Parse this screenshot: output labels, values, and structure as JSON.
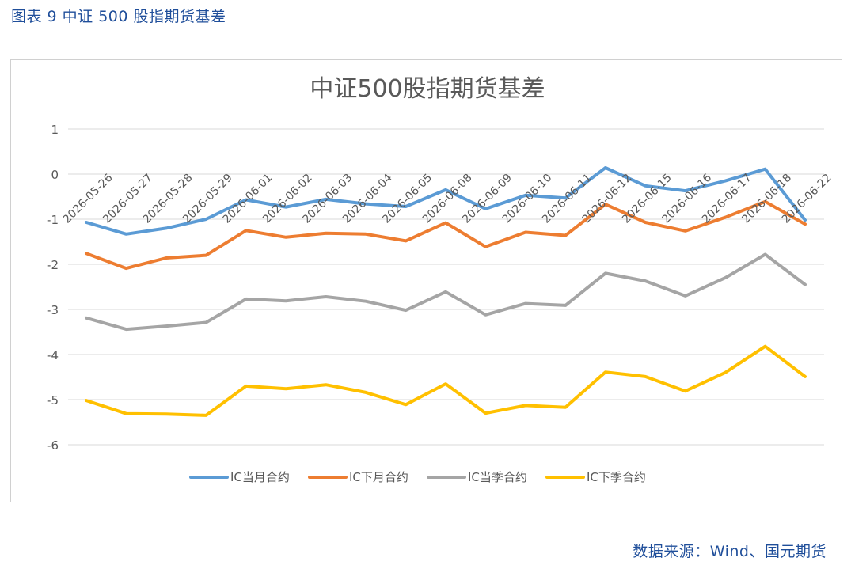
{
  "caption": "图表 9 中证 500 股指期货基差",
  "source": "数据来源：Wind、国元期货",
  "chart_data": {
    "type": "line",
    "title": "中证500股指期货基差",
    "xlabel": "",
    "ylabel": "",
    "ylim": [
      -6,
      1
    ],
    "yticks": [
      1,
      0,
      -1,
      -2,
      -3,
      -4,
      -5,
      -6
    ],
    "grid": true,
    "legend_position": "bottom",
    "categories": [
      "2026-05-26",
      "2026-05-27",
      "2026-05-28",
      "2026-05-29",
      "2026-06-01",
      "2026-06-02",
      "2026-06-03",
      "2026-06-04",
      "2026-06-05",
      "2026-06-08",
      "2026-06-09",
      "2026-06-10",
      "2026-06-11",
      "2026-06-12",
      "2026-06-15",
      "2026-06-16",
      "2026-06-17",
      "2026-06-18",
      "2026-06-22"
    ],
    "series": [
      {
        "name": "IC当月合约",
        "color": "#5b9bd5",
        "values": [
          -1.07,
          -1.33,
          -1.2,
          -1.0,
          -0.57,
          -0.73,
          -0.56,
          -0.66,
          -0.72,
          -0.35,
          -0.77,
          -0.47,
          -0.53,
          0.14,
          -0.26,
          -0.37,
          -0.15,
          0.11,
          -1.02
        ]
      },
      {
        "name": "IC下月合约",
        "color": "#ed7d31",
        "values": [
          -1.76,
          -2.09,
          -1.86,
          -1.8,
          -1.25,
          -1.4,
          -1.31,
          -1.33,
          -1.48,
          -1.08,
          -1.61,
          -1.29,
          -1.36,
          -0.67,
          -1.07,
          -1.26,
          -0.96,
          -0.61,
          -1.11
        ]
      },
      {
        "name": "IC当季合约",
        "color": "#a5a5a5",
        "values": [
          -3.19,
          -3.44,
          -3.37,
          -3.29,
          -2.77,
          -2.81,
          -2.72,
          -2.82,
          -3.02,
          -2.61,
          -3.12,
          -2.87,
          -2.91,
          -2.2,
          -2.37,
          -2.7,
          -2.3,
          -1.78,
          -2.45
        ]
      },
      {
        "name": "IC下季合约",
        "color": "#ffc000",
        "values": [
          -5.02,
          -5.31,
          -5.32,
          -5.35,
          -4.7,
          -4.76,
          -4.67,
          -4.84,
          -5.11,
          -4.65,
          -5.3,
          -5.13,
          -5.17,
          -4.39,
          -4.49,
          -4.81,
          -4.4,
          -3.82,
          -4.49
        ]
      }
    ]
  }
}
